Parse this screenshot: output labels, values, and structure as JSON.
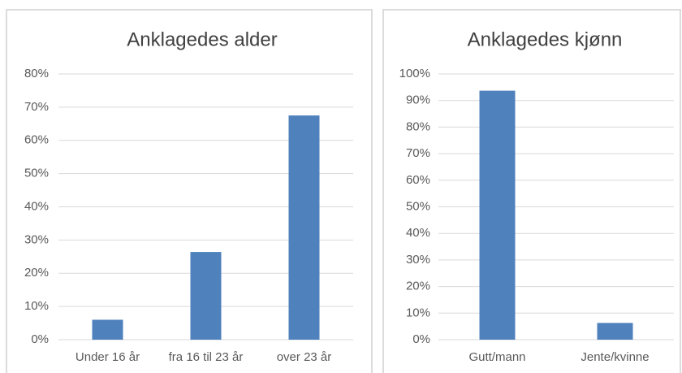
{
  "chart_data": [
    {
      "type": "bar",
      "title": "Anklagedes alder",
      "categories": [
        "Under 16 år",
        "fra 16 til 23 år",
        "over 23 år"
      ],
      "values": [
        6,
        26.4,
        67.5
      ],
      "color": "#4f81bd",
      "ylim": [
        0,
        80
      ],
      "yticks": [
        {
          "value": 0,
          "label": "0%"
        },
        {
          "value": 10,
          "label": "10%"
        },
        {
          "value": 20,
          "label": "20%"
        },
        {
          "value": 30,
          "label": "30%"
        },
        {
          "value": 40,
          "label": "40%"
        },
        {
          "value": 50,
          "label": "50%"
        },
        {
          "value": 60,
          "label": "60%"
        },
        {
          "value": 70,
          "label": "70%"
        },
        {
          "value": 80,
          "label": "80%"
        }
      ],
      "grid": true
    },
    {
      "type": "bar",
      "title": "Anklagedes kjønn",
      "categories": [
        "Gutt/mann",
        "Jente/kvinne"
      ],
      "values": [
        93.7,
        6.3
      ],
      "color": "#4f81bd",
      "ylim": [
        0,
        100
      ],
      "yticks": [
        {
          "value": 0,
          "label": "0%"
        },
        {
          "value": 10,
          "label": "10%"
        },
        {
          "value": 20,
          "label": "20%"
        },
        {
          "value": 30,
          "label": "30%"
        },
        {
          "value": 40,
          "label": "40%"
        },
        {
          "value": 50,
          "label": "50%"
        },
        {
          "value": 60,
          "label": "60%"
        },
        {
          "value": 70,
          "label": "70%"
        },
        {
          "value": 80,
          "label": "80%"
        },
        {
          "value": 90,
          "label": "90%"
        },
        {
          "value": 100,
          "label": "100%"
        }
      ],
      "grid": true
    }
  ]
}
